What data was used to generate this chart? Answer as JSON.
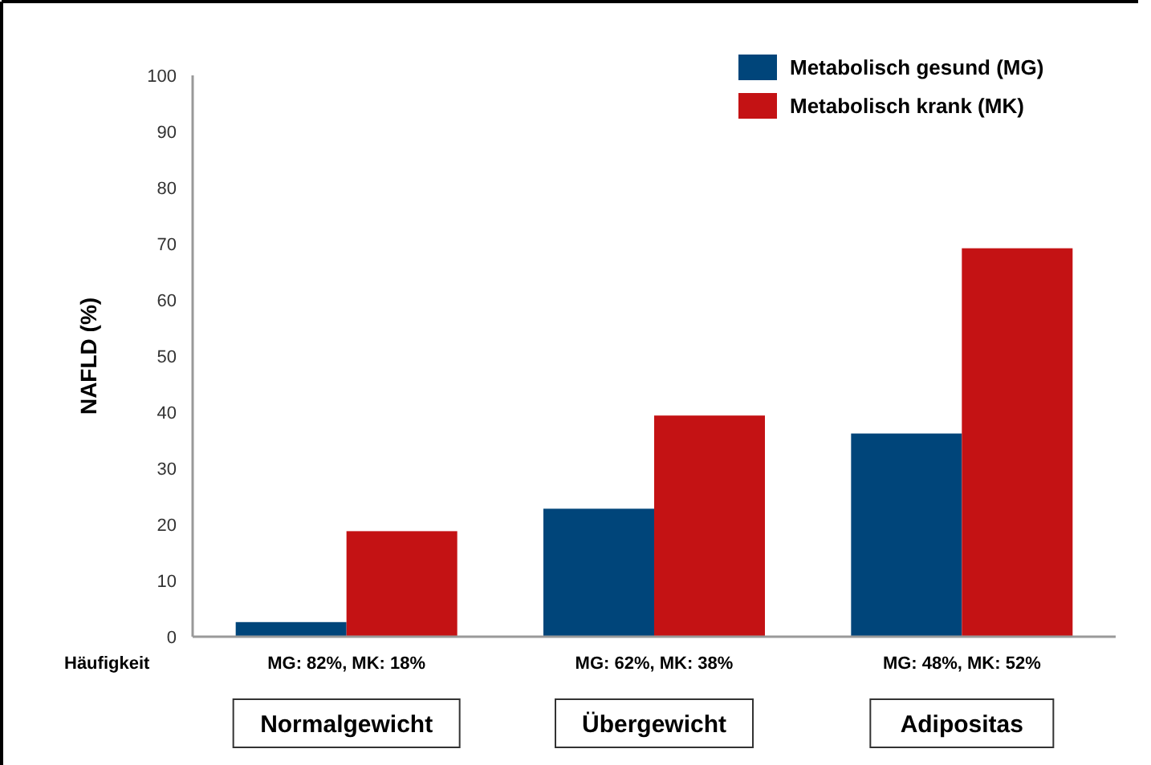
{
  "chart_data": {
    "type": "bar",
    "ylabel": "NAFLD (%)",
    "categories": [
      "Normalgewicht",
      "Übergewicht",
      "Adipositas"
    ],
    "series": [
      {
        "name": "Metabolisch gesund (MG)",
        "color": "#00457a",
        "values": [
          2.6,
          22.8,
          36.2
        ]
      },
      {
        "name": "Metabolisch krank (MK)",
        "color": "#c41214",
        "values": [
          18.8,
          39.4,
          69.2
        ]
      }
    ],
    "ylim": [
      0,
      100
    ],
    "yticks": [
      0,
      10,
      20,
      30,
      40,
      50,
      60,
      70,
      80,
      90,
      100
    ],
    "grid": false,
    "legend": "top right",
    "annotations": [
      "Häufigkeit",
      "MG: 82%, MK: 18%",
      "MG: 62%, MK: 38%",
      "MG: 48%, MK: 52%"
    ]
  }
}
